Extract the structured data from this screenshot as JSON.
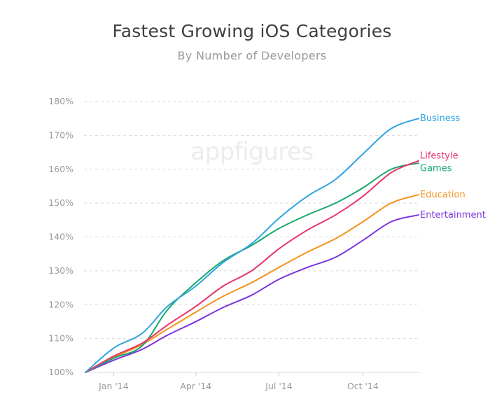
{
  "watermark": "appfigures",
  "chart_data": {
    "type": "line",
    "title": "Fastest Growing iOS Categories",
    "subtitle": "By Number of Developers",
    "xlabel": "",
    "ylabel": "",
    "x": [
      "2013-12-01",
      "2014-01-01",
      "2014-02-01",
      "2014-03-01",
      "2014-04-01",
      "2014-05-01",
      "2014-06-01",
      "2014-07-01",
      "2014-08-01",
      "2014-09-01",
      "2014-10-01",
      "2014-11-01",
      "2014-12-01"
    ],
    "x_ticks": [
      {
        "value": "2014-01-01",
        "label": "Jan '14"
      },
      {
        "value": "2014-04-01",
        "label": "Apr '14"
      },
      {
        "value": "2014-07-01",
        "label": "Jul '14"
      },
      {
        "value": "2014-10-01",
        "label": "Oct '14"
      }
    ],
    "ylim": [
      100,
      180
    ],
    "y_ticks": [
      "100%",
      "110%",
      "120%",
      "130%",
      "140%",
      "150%",
      "160%",
      "170%",
      "180%"
    ],
    "y_tick_values": [
      100,
      110,
      120,
      130,
      140,
      150,
      160,
      170,
      180
    ],
    "grid": "horizontal dashed",
    "legend": "end-of-line labels",
    "series": [
      {
        "name": "Business",
        "color": "#2ea3e0",
        "values": [
          100,
          107.2,
          111.5,
          119.5,
          125.5,
          132.5,
          138,
          145.5,
          152,
          157,
          164.5,
          172,
          175
        ]
      },
      {
        "name": "Lifestyle",
        "color": "#e8336b",
        "values": [
          100,
          104.8,
          108.6,
          114,
          119.5,
          125.5,
          130,
          136.5,
          142,
          146.5,
          152,
          159,
          162.5
        ]
      },
      {
        "name": "Games",
        "color": "#17a86b",
        "values": [
          100,
          104.2,
          107.8,
          118.5,
          126.5,
          133,
          137.5,
          142.5,
          146.5,
          150,
          154.5,
          160,
          161.8
        ]
      },
      {
        "name": "Education",
        "color": "#f2931e",
        "values": [
          100,
          104.4,
          108.2,
          112.8,
          117.8,
          122.5,
          126.5,
          131,
          135.5,
          139.5,
          144.5,
          150,
          152.5
        ]
      },
      {
        "name": "Entertainment",
        "color": "#7b35e0",
        "values": [
          100,
          103.6,
          106.8,
          111,
          115,
          119.2,
          122.8,
          127.5,
          131,
          134,
          139,
          144.5,
          146.5
        ]
      }
    ]
  }
}
